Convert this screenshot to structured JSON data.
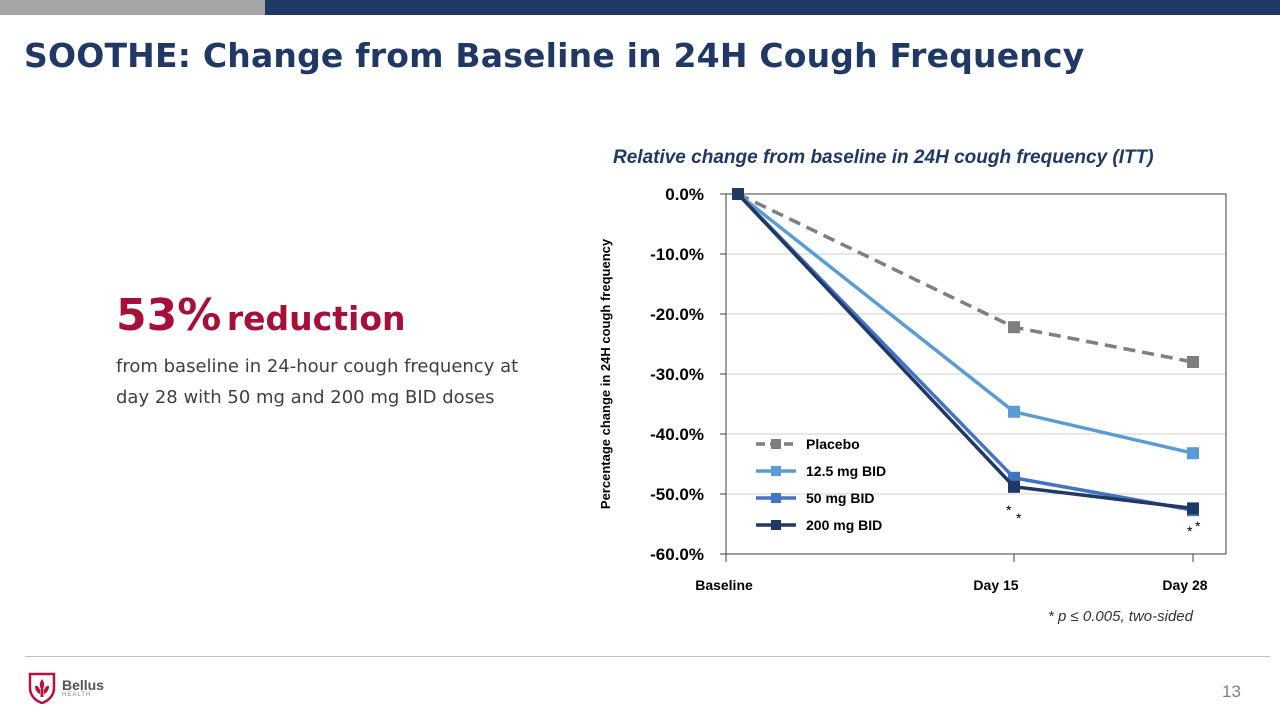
{
  "slide": {
    "title": "SOOTHE: Change from Baseline in 24H Cough Frequency",
    "headline_number": "53%",
    "headline_word": "reduction",
    "description": "from baseline in 24-hour cough frequency at day 28 with 50 mg and 200 mg BID doses",
    "footnote": "* p ≤ 0.005, two-sided",
    "page_number": "13",
    "logo": {
      "name": "Bellus",
      "sub": "HEALTH",
      "icon": "fleur-de-lis-shield-icon"
    }
  },
  "colors": {
    "navy": "#1f3864",
    "accent_red": "#a50f3a",
    "placebo": "#7f7f7f",
    "dose_12_5": "#5b9bd5",
    "dose_50": "#4472c4",
    "dose_200": "#203864"
  },
  "chart_data": {
    "type": "line",
    "title": "Relative change from baseline in 24H cough frequency (ITT)",
    "ylabel": "Percentage change in 24H cough frequency",
    "xlabel": "",
    "categories": [
      "Baseline",
      "Day 15",
      "Day 28"
    ],
    "ylim": [
      -60,
      0
    ],
    "yticks": [
      "0.0%",
      "-10.0%",
      "-20.0%",
      "-30.0%",
      "-40.0%",
      "-50.0%",
      "-60.0%"
    ],
    "grid": true,
    "legend": "bottom-left",
    "series": [
      {
        "name": "Placebo",
        "x": [
          0,
          15,
          28
        ],
        "values": [
          0,
          -22.2,
          -28.0
        ],
        "color": "#7f7f7f",
        "dashed": true
      },
      {
        "name": "12.5 mg BID",
        "x": [
          0,
          15,
          28
        ],
        "values": [
          0,
          -36.3,
          -43.2
        ],
        "color": "#5b9bd5",
        "dashed": false
      },
      {
        "name": "50 mg BID",
        "x": [
          0,
          15,
          28
        ],
        "values": [
          0,
          -47.3,
          -52.7
        ],
        "color": "#4472c4",
        "dashed": false
      },
      {
        "name": "200 mg BID",
        "x": [
          0,
          15,
          28
        ],
        "values": [
          0,
          -48.8,
          -52.4
        ],
        "color": "#203864",
        "dashed": false
      }
    ],
    "annotations": [
      {
        "text": "*",
        "x": 15,
        "y": -51.5
      },
      {
        "text": "*",
        "x": 15,
        "y": -52.8
      },
      {
        "text": "*",
        "x": 28,
        "y": -55.0
      },
      {
        "text": "*",
        "x": 28,
        "y": -54.2
      }
    ]
  }
}
